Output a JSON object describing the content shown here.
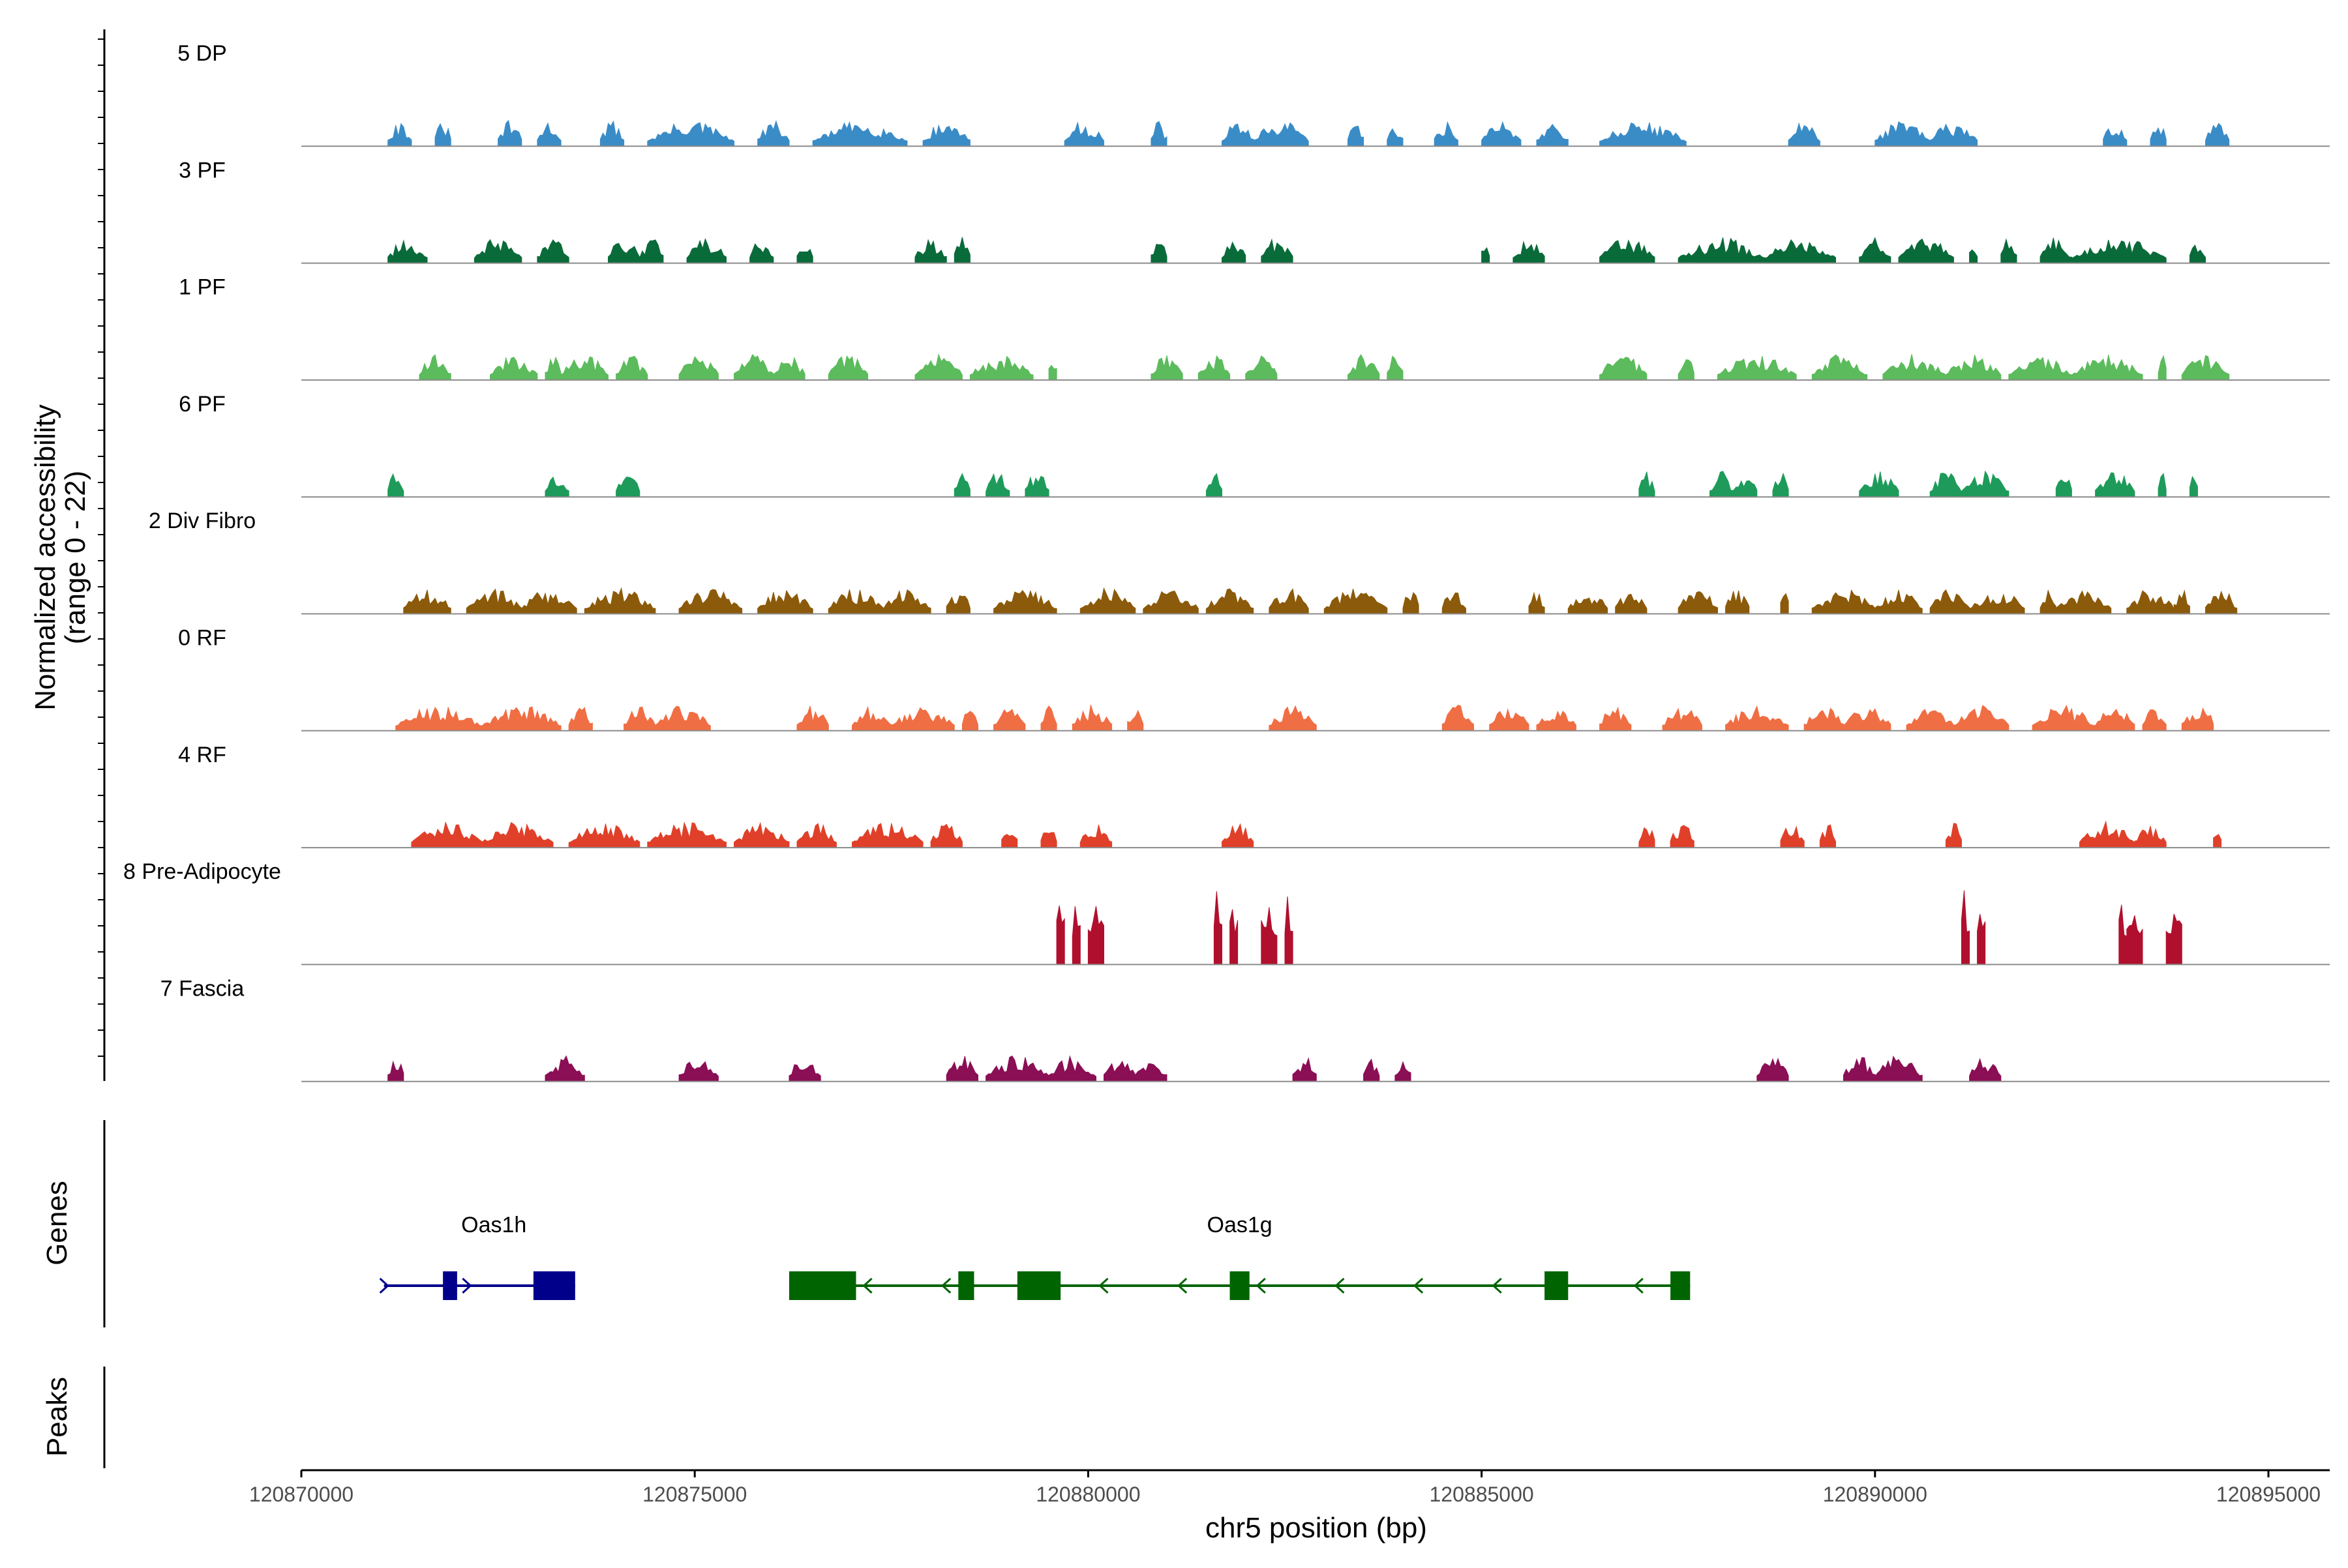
{
  "chart_data": {
    "type": "area",
    "title": "",
    "chromosome": "chr5",
    "xlabel": "chr5 position (bp)",
    "ylabel": "Normalized accessibility",
    "ylabel_sub": "(range 0 - 22)",
    "y_range": [
      0,
      22
    ],
    "xlim": [
      120870000,
      120895800
    ],
    "x_ticks": [
      120870000,
      120875000,
      120880000,
      120885000,
      120890000,
      120895000
    ],
    "x_tick_labels": [
      "120870000",
      "120875000",
      "120880000",
      "120885000",
      "120890000",
      "120895000"
    ],
    "tracks": [
      {
        "name": "5 DP",
        "color": "#3a8cc7",
        "max": 6,
        "regions": [
          [
            120871100,
            120871400
          ],
          [
            120871700,
            120871900
          ],
          [
            120872500,
            120872800
          ],
          [
            120873000,
            120873300
          ],
          [
            120873800,
            120874100
          ],
          [
            120874400,
            120875500
          ],
          [
            120875800,
            120876200
          ],
          [
            120876500,
            120877700
          ],
          [
            120877900,
            120878500
          ],
          [
            120879700,
            120880200
          ],
          [
            120880800,
            120881000
          ],
          [
            120881700,
            120882100
          ],
          [
            120882100,
            120882800
          ],
          [
            120883300,
            120883500
          ],
          [
            120883800,
            120884000
          ],
          [
            120884400,
            120884700
          ],
          [
            120885000,
            120885500
          ],
          [
            120885700,
            120886100
          ],
          [
            120886500,
            120887600
          ],
          [
            120888900,
            120889300
          ],
          [
            120890000,
            120890700
          ],
          [
            120890700,
            120891300
          ],
          [
            120892900,
            120893200
          ],
          [
            120893500,
            120893700
          ],
          [
            120894200,
            120894500
          ]
        ]
      },
      {
        "name": "3 PF",
        "color": "#0a6b3a",
        "max": 7,
        "regions": [
          [
            120871100,
            120871600
          ],
          [
            120872200,
            120872800
          ],
          [
            120873000,
            120873400
          ],
          [
            120873900,
            120874300
          ],
          [
            120874300,
            120874600
          ],
          [
            120874900,
            120875400
          ],
          [
            120875700,
            120876000
          ],
          [
            120876300,
            120876500
          ],
          [
            120877800,
            120878200
          ],
          [
            120878300,
            120878500
          ],
          [
            120880800,
            120881000
          ],
          [
            120881700,
            120882000
          ],
          [
            120882200,
            120882600
          ],
          [
            120885000,
            120885100
          ],
          [
            120885400,
            120885800
          ],
          [
            120886500,
            120887200
          ],
          [
            120887500,
            120888600
          ],
          [
            120888600,
            120889500
          ],
          [
            120889800,
            120890200
          ],
          [
            120890300,
            120891000
          ],
          [
            120891200,
            120891300
          ],
          [
            120891600,
            120891800
          ],
          [
            120892100,
            120892500
          ],
          [
            120892500,
            120893700
          ],
          [
            120894000,
            120894200
          ]
        ]
      },
      {
        "name": "1 PF",
        "color": "#5cbb5c",
        "max": 8,
        "regions": [
          [
            120871500,
            120871900
          ],
          [
            120872400,
            120873000
          ],
          [
            120873100,
            120873300
          ],
          [
            120873300,
            120873900
          ],
          [
            120874000,
            120874400
          ],
          [
            120874800,
            120875300
          ],
          [
            120875500,
            120876000
          ],
          [
            120876000,
            120876400
          ],
          [
            120876700,
            120877200
          ],
          [
            120877800,
            120878400
          ],
          [
            120878500,
            120879300
          ],
          [
            120879500,
            120879600
          ],
          [
            120880800,
            120881200
          ],
          [
            120881400,
            120881800
          ],
          [
            120882000,
            120882400
          ],
          [
            120883300,
            120883700
          ],
          [
            120883800,
            120884000
          ],
          [
            120886500,
            120887100
          ],
          [
            120887500,
            120887700
          ],
          [
            120888000,
            120889000
          ],
          [
            120889200,
            120889900
          ],
          [
            120890100,
            120890900
          ],
          [
            120890900,
            120891600
          ],
          [
            120891700,
            120892500
          ],
          [
            120892500,
            120893400
          ],
          [
            120893600,
            120893700
          ],
          [
            120893900,
            120894500
          ]
        ]
      },
      {
        "name": "6 PF",
        "color": "#1e9b5a",
        "max": 10,
        "regions": [
          [
            120871100,
            120871300
          ],
          [
            120873100,
            120873400
          ],
          [
            120874000,
            120874300
          ],
          [
            120878300,
            120878500
          ],
          [
            120878700,
            120879000
          ],
          [
            120879200,
            120879500
          ],
          [
            120881500,
            120881700
          ],
          [
            120887000,
            120887200
          ],
          [
            120887900,
            120888200
          ],
          [
            120888200,
            120888500
          ],
          [
            120888700,
            120888900
          ],
          [
            120889800,
            120890300
          ],
          [
            120890700,
            120891100
          ],
          [
            120891100,
            120891700
          ],
          [
            120892300,
            120892500
          ],
          [
            120892800,
            120893300
          ],
          [
            120893600,
            120893700
          ],
          [
            120894000,
            120894100
          ]
        ]
      },
      {
        "name": "2 Div Fibro",
        "color": "#8b5a0a",
        "max": 8,
        "regions": [
          [
            120871300,
            120871900
          ],
          [
            120872100,
            120872800
          ],
          [
            120872800,
            120873500
          ],
          [
            120873600,
            120874500
          ],
          [
            120874800,
            120875600
          ],
          [
            120875800,
            120876500
          ],
          [
            120876700,
            120877400
          ],
          [
            120877400,
            120878000
          ],
          [
            120878200,
            120878500
          ],
          [
            120878800,
            120879600
          ],
          [
            120879900,
            120880600
          ],
          [
            120880700,
            120881400
          ],
          [
            120881500,
            120882100
          ],
          [
            120882300,
            120882800
          ],
          [
            120883000,
            120883800
          ],
          [
            120884000,
            120884200
          ],
          [
            120884500,
            120884800
          ],
          [
            120885600,
            120885800
          ],
          [
            120886100,
            120886600
          ],
          [
            120886700,
            120887100
          ],
          [
            120887500,
            120888000
          ],
          [
            120888100,
            120888400
          ],
          [
            120888800,
            120888900
          ],
          [
            120889200,
            120890000
          ],
          [
            120890000,
            120890600
          ],
          [
            120890700,
            120891200
          ],
          [
            120891200,
            120891900
          ],
          [
            120892100,
            120892300
          ],
          [
            120892300,
            120893000
          ],
          [
            120893200,
            120893800
          ],
          [
            120893800,
            120894000
          ],
          [
            120894200,
            120894600
          ]
        ]
      },
      {
        "name": "0 RF",
        "color": "#f06e44",
        "max": 8,
        "regions": [
          [
            120871200,
            120872300
          ],
          [
            120872300,
            120873300
          ],
          [
            120873400,
            120873700
          ],
          [
            120874100,
            120874500
          ],
          [
            120874500,
            120875200
          ],
          [
            120876300,
            120876700
          ],
          [
            120877000,
            120877500
          ],
          [
            120877500,
            120878300
          ],
          [
            120878400,
            120878600
          ],
          [
            120878800,
            120879200
          ],
          [
            120879400,
            120879600
          ],
          [
            120879800,
            120880300
          ],
          [
            120880500,
            120880700
          ],
          [
            120882300,
            120882900
          ],
          [
            120884500,
            120884900
          ],
          [
            120885100,
            120885600
          ],
          [
            120885700,
            120886200
          ],
          [
            120886500,
            120886900
          ],
          [
            120887300,
            120887800
          ],
          [
            120888100,
            120888900
          ],
          [
            120889100,
            120889600
          ],
          [
            120889600,
            120890200
          ],
          [
            120890400,
            120891000
          ],
          [
            120891000,
            120891700
          ],
          [
            120892000,
            120892800
          ],
          [
            120892800,
            120893300
          ],
          [
            120893400,
            120893700
          ],
          [
            120893900,
            120894300
          ],
          [
            120894200,
            120894300
          ]
        ]
      },
      {
        "name": "4 RF",
        "color": "#e0402a",
        "max": 10,
        "regions": [
          [
            120871400,
            120872300
          ],
          [
            120872300,
            120873200
          ],
          [
            120873400,
            120874300
          ],
          [
            120874400,
            120875400
          ],
          [
            120875500,
            120876200
          ],
          [
            120876300,
            120876800
          ],
          [
            120877000,
            120877900
          ],
          [
            120878000,
            120878400
          ],
          [
            120878900,
            120879100
          ],
          [
            120879400,
            120879600
          ],
          [
            120879900,
            120880300
          ],
          [
            120881700,
            120882100
          ],
          [
            120887000,
            120887200
          ],
          [
            120887400,
            120887700
          ],
          [
            120888800,
            120889100
          ],
          [
            120889300,
            120889500
          ],
          [
            120890900,
            120891100
          ],
          [
            120892600,
            120893300
          ],
          [
            120893300,
            120893700
          ],
          [
            120894300,
            120894400
          ]
        ]
      },
      {
        "name": "8 Pre-Adipocyte",
        "color": "#b0102e",
        "max": 22,
        "regions": [
          [
            120879600,
            120879700
          ],
          [
            120879800,
            120879900
          ],
          [
            120880000,
            120880200
          ],
          [
            120881600,
            120881700
          ],
          [
            120881800,
            120881900
          ],
          [
            120882200,
            120882400
          ],
          [
            120882500,
            120882600
          ],
          [
            120891100,
            120891200
          ],
          [
            120891300,
            120891400
          ],
          [
            120893100,
            120893200
          ],
          [
            120893200,
            120893400
          ],
          [
            120893700,
            120893900
          ]
        ]
      },
      {
        "name": "7 Fascia",
        "color": "#8a0f55",
        "max": 8,
        "regions": [
          [
            120871100,
            120871300
          ],
          [
            120873100,
            120873600
          ],
          [
            120874800,
            120875300
          ],
          [
            120876200,
            120876600
          ],
          [
            120878200,
            120878600
          ],
          [
            120878700,
            120879500
          ],
          [
            120879500,
            120880100
          ],
          [
            120880200,
            120880600
          ],
          [
            120880600,
            120881000
          ],
          [
            120882600,
            120882900
          ],
          [
            120883500,
            120883700
          ],
          [
            120883900,
            120884100
          ],
          [
            120888500,
            120888900
          ],
          [
            120889600,
            120890000
          ],
          [
            120890000,
            120890600
          ],
          [
            120891200,
            120891600
          ]
        ]
      }
    ],
    "genes": [
      {
        "name": "Oas1h",
        "strand": "+",
        "start": 120871050,
        "end": 120873480,
        "color": "#00008b",
        "exons": [
          [
            120871800,
            120871980
          ],
          [
            120872950,
            120873480
          ]
        ],
        "arrows": [
          120871050,
          120872100
        ]
      },
      {
        "name": "Oas1g",
        "strand": "-",
        "start": 120876200,
        "end": 120887650,
        "color": "#006400",
        "exons": [
          [
            120876200,
            120877050
          ],
          [
            120878350,
            120878550
          ],
          [
            120879100,
            120879650
          ],
          [
            120881800,
            120882050
          ],
          [
            120885800,
            120886100
          ],
          [
            120887400,
            120887650
          ]
        ],
        "arrows": [
          120877200,
          120878200,
          120880200,
          120881200,
          120882200,
          120883200,
          120884200,
          120885200,
          120887000
        ]
      }
    ],
    "panel_labels": {
      "genes": "Genes",
      "peaks": "Peaks"
    }
  }
}
